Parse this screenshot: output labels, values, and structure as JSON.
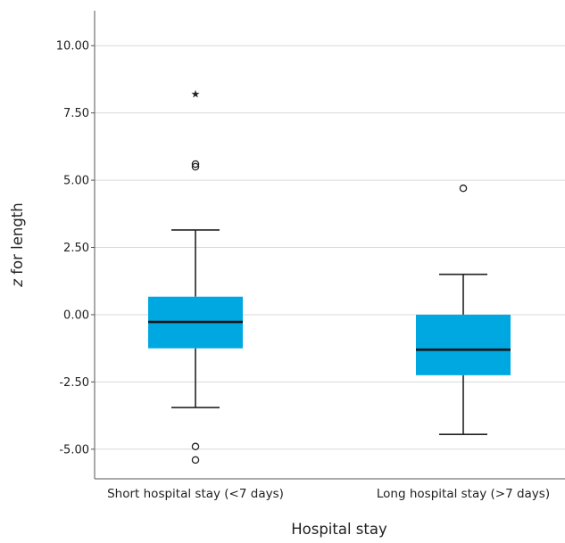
{
  "chart_data": {
    "type": "box",
    "xlabel": "Hospital stay",
    "ylabel_italic": "z",
    "ylabel_rest": " for length",
    "ylim": [
      -6.1,
      11.3
    ],
    "yticks": [
      10,
      7.5,
      5,
      2.5,
      0,
      -2.5,
      -5
    ],
    "ytick_labels": [
      "10.00",
      "7.50",
      "5.00",
      "2.50",
      "0.00",
      "-2.50",
      "-5.00"
    ],
    "grid": true,
    "box_color": "#00a8e1",
    "categories": [
      "Short hospital stay (<7 days)",
      "Long hospital stay (>7 days)"
    ],
    "boxes": [
      {
        "whisker_low": -3.45,
        "q1": -1.25,
        "median": -0.27,
        "q3": 0.67,
        "whisker_high": 3.15,
        "outliers": [
          5.6,
          5.5,
          -4.9,
          -5.4
        ],
        "extremes": [
          8.2
        ]
      },
      {
        "whisker_low": -4.45,
        "q1": -2.25,
        "median": -1.3,
        "q3": 0.0,
        "whisker_high": 1.5,
        "outliers": [
          4.7
        ],
        "extremes": []
      }
    ]
  }
}
